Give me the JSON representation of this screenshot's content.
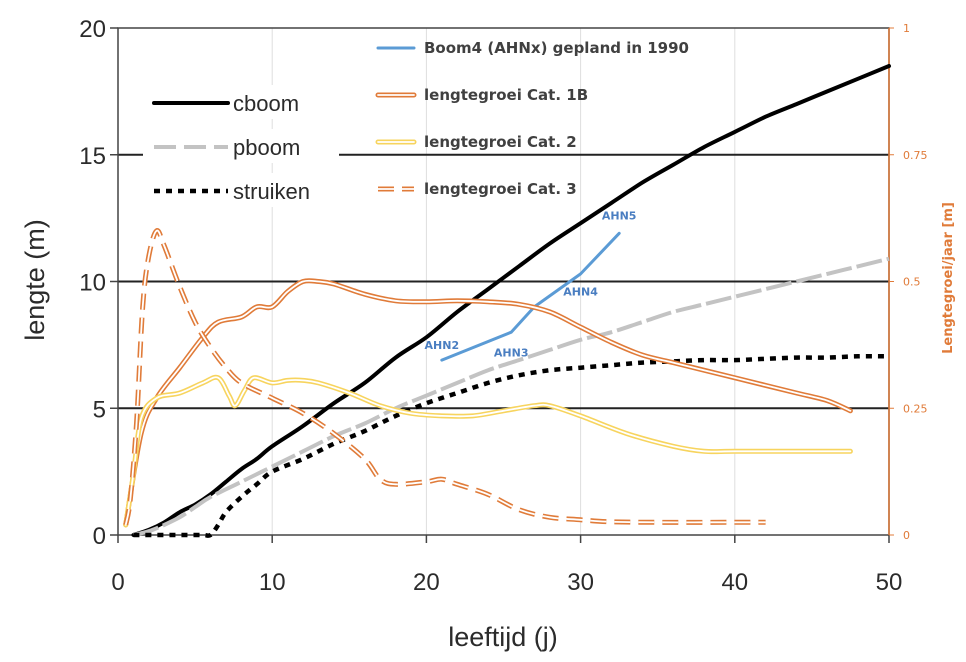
{
  "chart_data": {
    "type": "line",
    "xlabel": "leeftijd (j)",
    "ylabel": "lengte (m)",
    "y2label": "Lengtegroei/jaar [m]",
    "xlim": [
      0,
      50
    ],
    "ylim": [
      0,
      20
    ],
    "y2lim": [
      0,
      1
    ],
    "x_ticks": [
      "0",
      "10",
      "20",
      "30",
      "40",
      "50"
    ],
    "y_ticks": [
      "0",
      "5",
      "10",
      "15",
      "20"
    ],
    "y2_ticks": [
      "0",
      "0.25",
      "0.5",
      "0.75",
      "1"
    ],
    "colors": {
      "cboom": "#000000",
      "pboom": "#c3c3c3",
      "struiken": "#000000",
      "boom4": "#5b9bd5",
      "cat1b": "#e07b39",
      "cat2": "#f7d45e",
      "cat3": "#e07b39",
      "right_axis": "#e07b39"
    },
    "series": [
      {
        "name": "cboom",
        "axis": "left",
        "style": "solid-thick",
        "color_key": "cboom",
        "points": [
          [
            1,
            0
          ],
          [
            2,
            0.2
          ],
          [
            3,
            0.5
          ],
          [
            4,
            0.9
          ],
          [
            5,
            1.2
          ],
          [
            6,
            1.6
          ],
          [
            7,
            2.1
          ],
          [
            8,
            2.6
          ],
          [
            9,
            3
          ],
          [
            10,
            3.5
          ],
          [
            12,
            4.3
          ],
          [
            14,
            5.2
          ],
          [
            16,
            6
          ],
          [
            18,
            7
          ],
          [
            20,
            7.8
          ],
          [
            22,
            8.8
          ],
          [
            24,
            9.7
          ],
          [
            26,
            10.6
          ],
          [
            28,
            11.5
          ],
          [
            30,
            12.3
          ],
          [
            32,
            13.1
          ],
          [
            34,
            13.9
          ],
          [
            36,
            14.6
          ],
          [
            38,
            15.3
          ],
          [
            40,
            15.9
          ],
          [
            42,
            16.5
          ],
          [
            44,
            17
          ],
          [
            46,
            17.5
          ],
          [
            48,
            18
          ],
          [
            50,
            18.5
          ]
        ]
      },
      {
        "name": "pboom",
        "axis": "left",
        "style": "dashed-grey",
        "color_key": "pboom",
        "points": [
          [
            1,
            0
          ],
          [
            2,
            0.15
          ],
          [
            3,
            0.4
          ],
          [
            4,
            0.7
          ],
          [
            5,
            1.1
          ],
          [
            6,
            1.5
          ],
          [
            8,
            2.1
          ],
          [
            10,
            2.7
          ],
          [
            12,
            3.3
          ],
          [
            14,
            3.9
          ],
          [
            16,
            4.4
          ],
          [
            18,
            5
          ],
          [
            20,
            5.5
          ],
          [
            22,
            6
          ],
          [
            24,
            6.5
          ],
          [
            26,
            6.9
          ],
          [
            28,
            7.3
          ],
          [
            30,
            7.7
          ],
          [
            32,
            8
          ],
          [
            34,
            8.4
          ],
          [
            36,
            8.8
          ],
          [
            38,
            9.1
          ],
          [
            40,
            9.4
          ],
          [
            42,
            9.7
          ],
          [
            44,
            10
          ],
          [
            46,
            10.3
          ],
          [
            48,
            10.6
          ],
          [
            50,
            10.9
          ]
        ]
      },
      {
        "name": "struiken",
        "axis": "left",
        "style": "dotted-black",
        "color_key": "struiken",
        "points": [
          [
            1,
            0
          ],
          [
            2,
            0
          ],
          [
            4,
            0
          ],
          [
            5.5,
            0
          ],
          [
            6,
            0
          ],
          [
            6.5,
            0.4
          ],
          [
            7,
            0.9
          ],
          [
            8,
            1.5
          ],
          [
            9,
            2
          ],
          [
            10,
            2.5
          ],
          [
            12,
            3
          ],
          [
            14,
            3.6
          ],
          [
            16,
            4.1
          ],
          [
            18,
            4.7
          ],
          [
            20,
            5.2
          ],
          [
            22,
            5.6
          ],
          [
            24,
            6
          ],
          [
            26,
            6.3
          ],
          [
            28,
            6.5
          ],
          [
            30,
            6.6
          ],
          [
            32,
            6.7
          ],
          [
            34,
            6.8
          ],
          [
            36,
            6.85
          ],
          [
            38,
            6.9
          ],
          [
            40,
            6.9
          ],
          [
            42,
            6.95
          ],
          [
            44,
            7
          ],
          [
            46,
            7
          ],
          [
            48,
            7.05
          ],
          [
            50,
            7.05
          ]
        ]
      },
      {
        "name": "Boom4 (AHNx) gepland in 1990",
        "axis": "left",
        "style": "blue",
        "color_key": "boom4",
        "points": [
          [
            21,
            6.9
          ],
          [
            25.5,
            8
          ],
          [
            27,
            9
          ],
          [
            30,
            10.3
          ],
          [
            32.5,
            11.9
          ]
        ]
      },
      {
        "name": "lengtegroei Cat. 1B",
        "axis": "right",
        "style": "double",
        "color_key": "cat1b",
        "points": [
          [
            0.5,
            0.02
          ],
          [
            1.5,
            0.2
          ],
          [
            2.5,
            0.27
          ],
          [
            4,
            0.33
          ],
          [
            5.5,
            0.39
          ],
          [
            6.5,
            0.42
          ],
          [
            8,
            0.43
          ],
          [
            9,
            0.45
          ],
          [
            10,
            0.45
          ],
          [
            11,
            0.48
          ],
          [
            12,
            0.5
          ],
          [
            13,
            0.5
          ],
          [
            14,
            0.495
          ],
          [
            16,
            0.475
          ],
          [
            18,
            0.462
          ],
          [
            20,
            0.46
          ],
          [
            22,
            0.462
          ],
          [
            24,
            0.46
          ],
          [
            26,
            0.455
          ],
          [
            28,
            0.44
          ],
          [
            30,
            0.41
          ],
          [
            32,
            0.38
          ],
          [
            34,
            0.355
          ],
          [
            36,
            0.34
          ],
          [
            38,
            0.325
          ],
          [
            40,
            0.31
          ],
          [
            42,
            0.295
          ],
          [
            44,
            0.28
          ],
          [
            46,
            0.265
          ],
          [
            47.5,
            0.245
          ]
        ]
      },
      {
        "name": "lengtegroei Cat. 2",
        "axis": "right",
        "style": "double",
        "color_key": "cat2",
        "points": [
          [
            0.5,
            0.02
          ],
          [
            1,
            0.12
          ],
          [
            1.5,
            0.23
          ],
          [
            2.5,
            0.27
          ],
          [
            4,
            0.28
          ],
          [
            5.5,
            0.3
          ],
          [
            6.5,
            0.31
          ],
          [
            7.2,
            0.275
          ],
          [
            7.6,
            0.255
          ],
          [
            8.2,
            0.285
          ],
          [
            8.8,
            0.31
          ],
          [
            10,
            0.3
          ],
          [
            11,
            0.305
          ],
          [
            12,
            0.305
          ],
          [
            13,
            0.3
          ],
          [
            15,
            0.28
          ],
          [
            17,
            0.255
          ],
          [
            19,
            0.24
          ],
          [
            21,
            0.235
          ],
          [
            23,
            0.235
          ],
          [
            25,
            0.245
          ],
          [
            27,
            0.255
          ],
          [
            28,
            0.255
          ],
          [
            30,
            0.235
          ],
          [
            33,
            0.2
          ],
          [
            36,
            0.175
          ],
          [
            38,
            0.165
          ],
          [
            40,
            0.165
          ],
          [
            44,
            0.165
          ],
          [
            47.5,
            0.165
          ]
        ]
      },
      {
        "name": "lengtegroei Cat. 3",
        "axis": "right",
        "style": "double-dashed",
        "color_key": "cat3",
        "points": [
          [
            0.5,
            0.02
          ],
          [
            0.8,
            0.07
          ],
          [
            1.2,
            0.22
          ],
          [
            1.6,
            0.45
          ],
          [
            2,
            0.55
          ],
          [
            2.5,
            0.6
          ],
          [
            3,
            0.57
          ],
          [
            4,
            0.49
          ],
          [
            5,
            0.42
          ],
          [
            6,
            0.37
          ],
          [
            7,
            0.33
          ],
          [
            8,
            0.3
          ],
          [
            10,
            0.27
          ],
          [
            12,
            0.24
          ],
          [
            14,
            0.2
          ],
          [
            16,
            0.15
          ],
          [
            17,
            0.11
          ],
          [
            18,
            0.1
          ],
          [
            20,
            0.105
          ],
          [
            21,
            0.11
          ],
          [
            22,
            0.1
          ],
          [
            24,
            0.08
          ],
          [
            26,
            0.05
          ],
          [
            28,
            0.035
          ],
          [
            30,
            0.03
          ],
          [
            32,
            0.026
          ],
          [
            35,
            0.025
          ],
          [
            40,
            0.025
          ],
          [
            42,
            0.025
          ]
        ]
      }
    ],
    "annotations": [
      {
        "text": "AHN2",
        "x": 21,
        "y": 7.5
      },
      {
        "text": "AHN3",
        "x": 25.5,
        "y": 7.2
      },
      {
        "text": "AHN4",
        "x": 30,
        "y": 9.6
      },
      {
        "text": "AHN5",
        "x": 32.5,
        "y": 12.6
      }
    ],
    "legend_left": {
      "location": "upper-left",
      "entries": [
        {
          "label": "cboom",
          "style": "solid-thick",
          "color_key": "cboom"
        },
        {
          "label": "pboom",
          "style": "dashed-grey",
          "color_key": "pboom"
        },
        {
          "label": "struiken",
          "style": "dotted-black",
          "color_key": "struiken"
        }
      ]
    },
    "legend_right": {
      "location": "top-center",
      "entries": [
        {
          "label": "Boom4 (AHNx) gepland in 1990",
          "style": "blue",
          "color_key": "boom4"
        },
        {
          "label": "lengtegroei Cat. 1B",
          "style": "double",
          "color_key": "cat1b"
        },
        {
          "label": "lengtegroei Cat. 2",
          "style": "double",
          "color_key": "cat2"
        },
        {
          "label": "lengtegroei Cat. 3",
          "style": "double-dashed",
          "color_key": "cat3"
        }
      ]
    }
  }
}
